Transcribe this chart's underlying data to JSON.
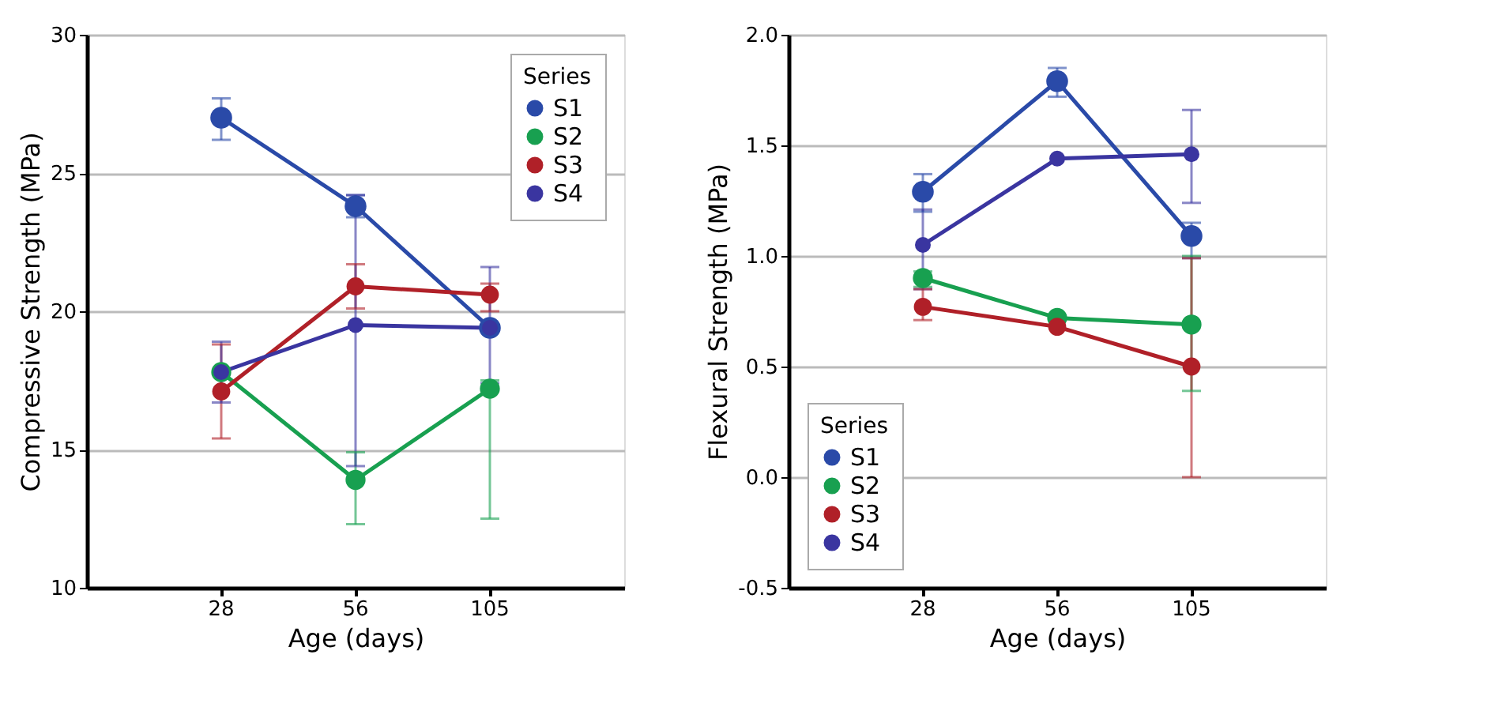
{
  "chart_data": [
    {
      "type": "line",
      "xlabel": "Age (days)",
      "ylabel": "Compressive Strength (MPa)",
      "legend_title": "Series",
      "legend": "top right",
      "grid": "y",
      "marker": "circle",
      "line_style": "solid",
      "categories": [
        "28",
        "56",
        "105"
      ],
      "ylim": [
        10,
        30
      ],
      "yticks": [
        10,
        15,
        20,
        25,
        30
      ],
      "series": [
        {
          "name": "S1",
          "color": "#2a4aa8",
          "values": [
            27.0,
            23.8,
            19.4
          ],
          "errors": [
            [
              26.2,
              27.7
            ],
            [
              23.4,
              24.2
            ],
            null
          ]
        },
        {
          "name": "S2",
          "color": "#18a050",
          "values": [
            17.8,
            13.9,
            17.2
          ],
          "errors": [
            null,
            [
              12.3,
              14.9
            ],
            [
              12.5,
              17.5
            ]
          ]
        },
        {
          "name": "S3",
          "color": "#b02028",
          "values": [
            17.1,
            20.9,
            20.6
          ],
          "errors": [
            [
              15.4,
              18.8
            ],
            [
              20.1,
              21.7
            ],
            [
              20.0,
              21.0
            ]
          ]
        },
        {
          "name": "S4",
          "color": "#3a35a0",
          "values": [
            17.8,
            19.5,
            19.4
          ],
          "errors": [
            [
              16.7,
              18.9
            ],
            [
              14.4,
              24.2
            ],
            [
              17.4,
              21.6
            ]
          ]
        }
      ]
    },
    {
      "type": "line",
      "xlabel": "Age (days)",
      "ylabel": "Flexural Strength (MPa)",
      "legend_title": "Series",
      "legend": "bottom left",
      "grid": "y",
      "marker": "circle",
      "line_style": "solid",
      "categories": [
        "28",
        "56",
        "105"
      ],
      "ylim": [
        -0.5,
        2.0
      ],
      "yticks": [
        {
          "value": -0.5,
          "label": "-0.5"
        },
        {
          "value": 0,
          "label": "0.0"
        },
        {
          "value": 0.5,
          "label": "0.5"
        },
        {
          "value": 1,
          "label": "1.0"
        },
        {
          "value": 1.5,
          "label": "1.5"
        },
        {
          "value": 2,
          "label": "2.0"
        }
      ],
      "series": [
        {
          "name": "S1",
          "color": "#2a4aa8",
          "values": [
            1.29,
            1.79,
            1.09
          ],
          "errors": [
            [
              1.2,
              1.37
            ],
            [
              1.72,
              1.85
            ],
            [
              0.99,
              1.15
            ]
          ]
        },
        {
          "name": "S2",
          "color": "#18a050",
          "values": [
            0.9,
            0.72,
            0.69
          ],
          "errors": [
            [
              0.86,
              0.93
            ],
            null,
            [
              0.39,
              1.0
            ]
          ]
        },
        {
          "name": "S3",
          "color": "#b02028",
          "values": [
            0.77,
            0.68,
            0.5
          ],
          "errors": [
            [
              0.71,
              0.85
            ],
            null,
            [
              0.0,
              0.99
            ]
          ]
        },
        {
          "name": "S4",
          "color": "#3a35a0",
          "values": [
            1.05,
            1.44,
            1.46
          ],
          "errors": [
            [
              0.85,
              1.21
            ],
            null,
            [
              1.24,
              1.66
            ]
          ]
        }
      ]
    }
  ]
}
